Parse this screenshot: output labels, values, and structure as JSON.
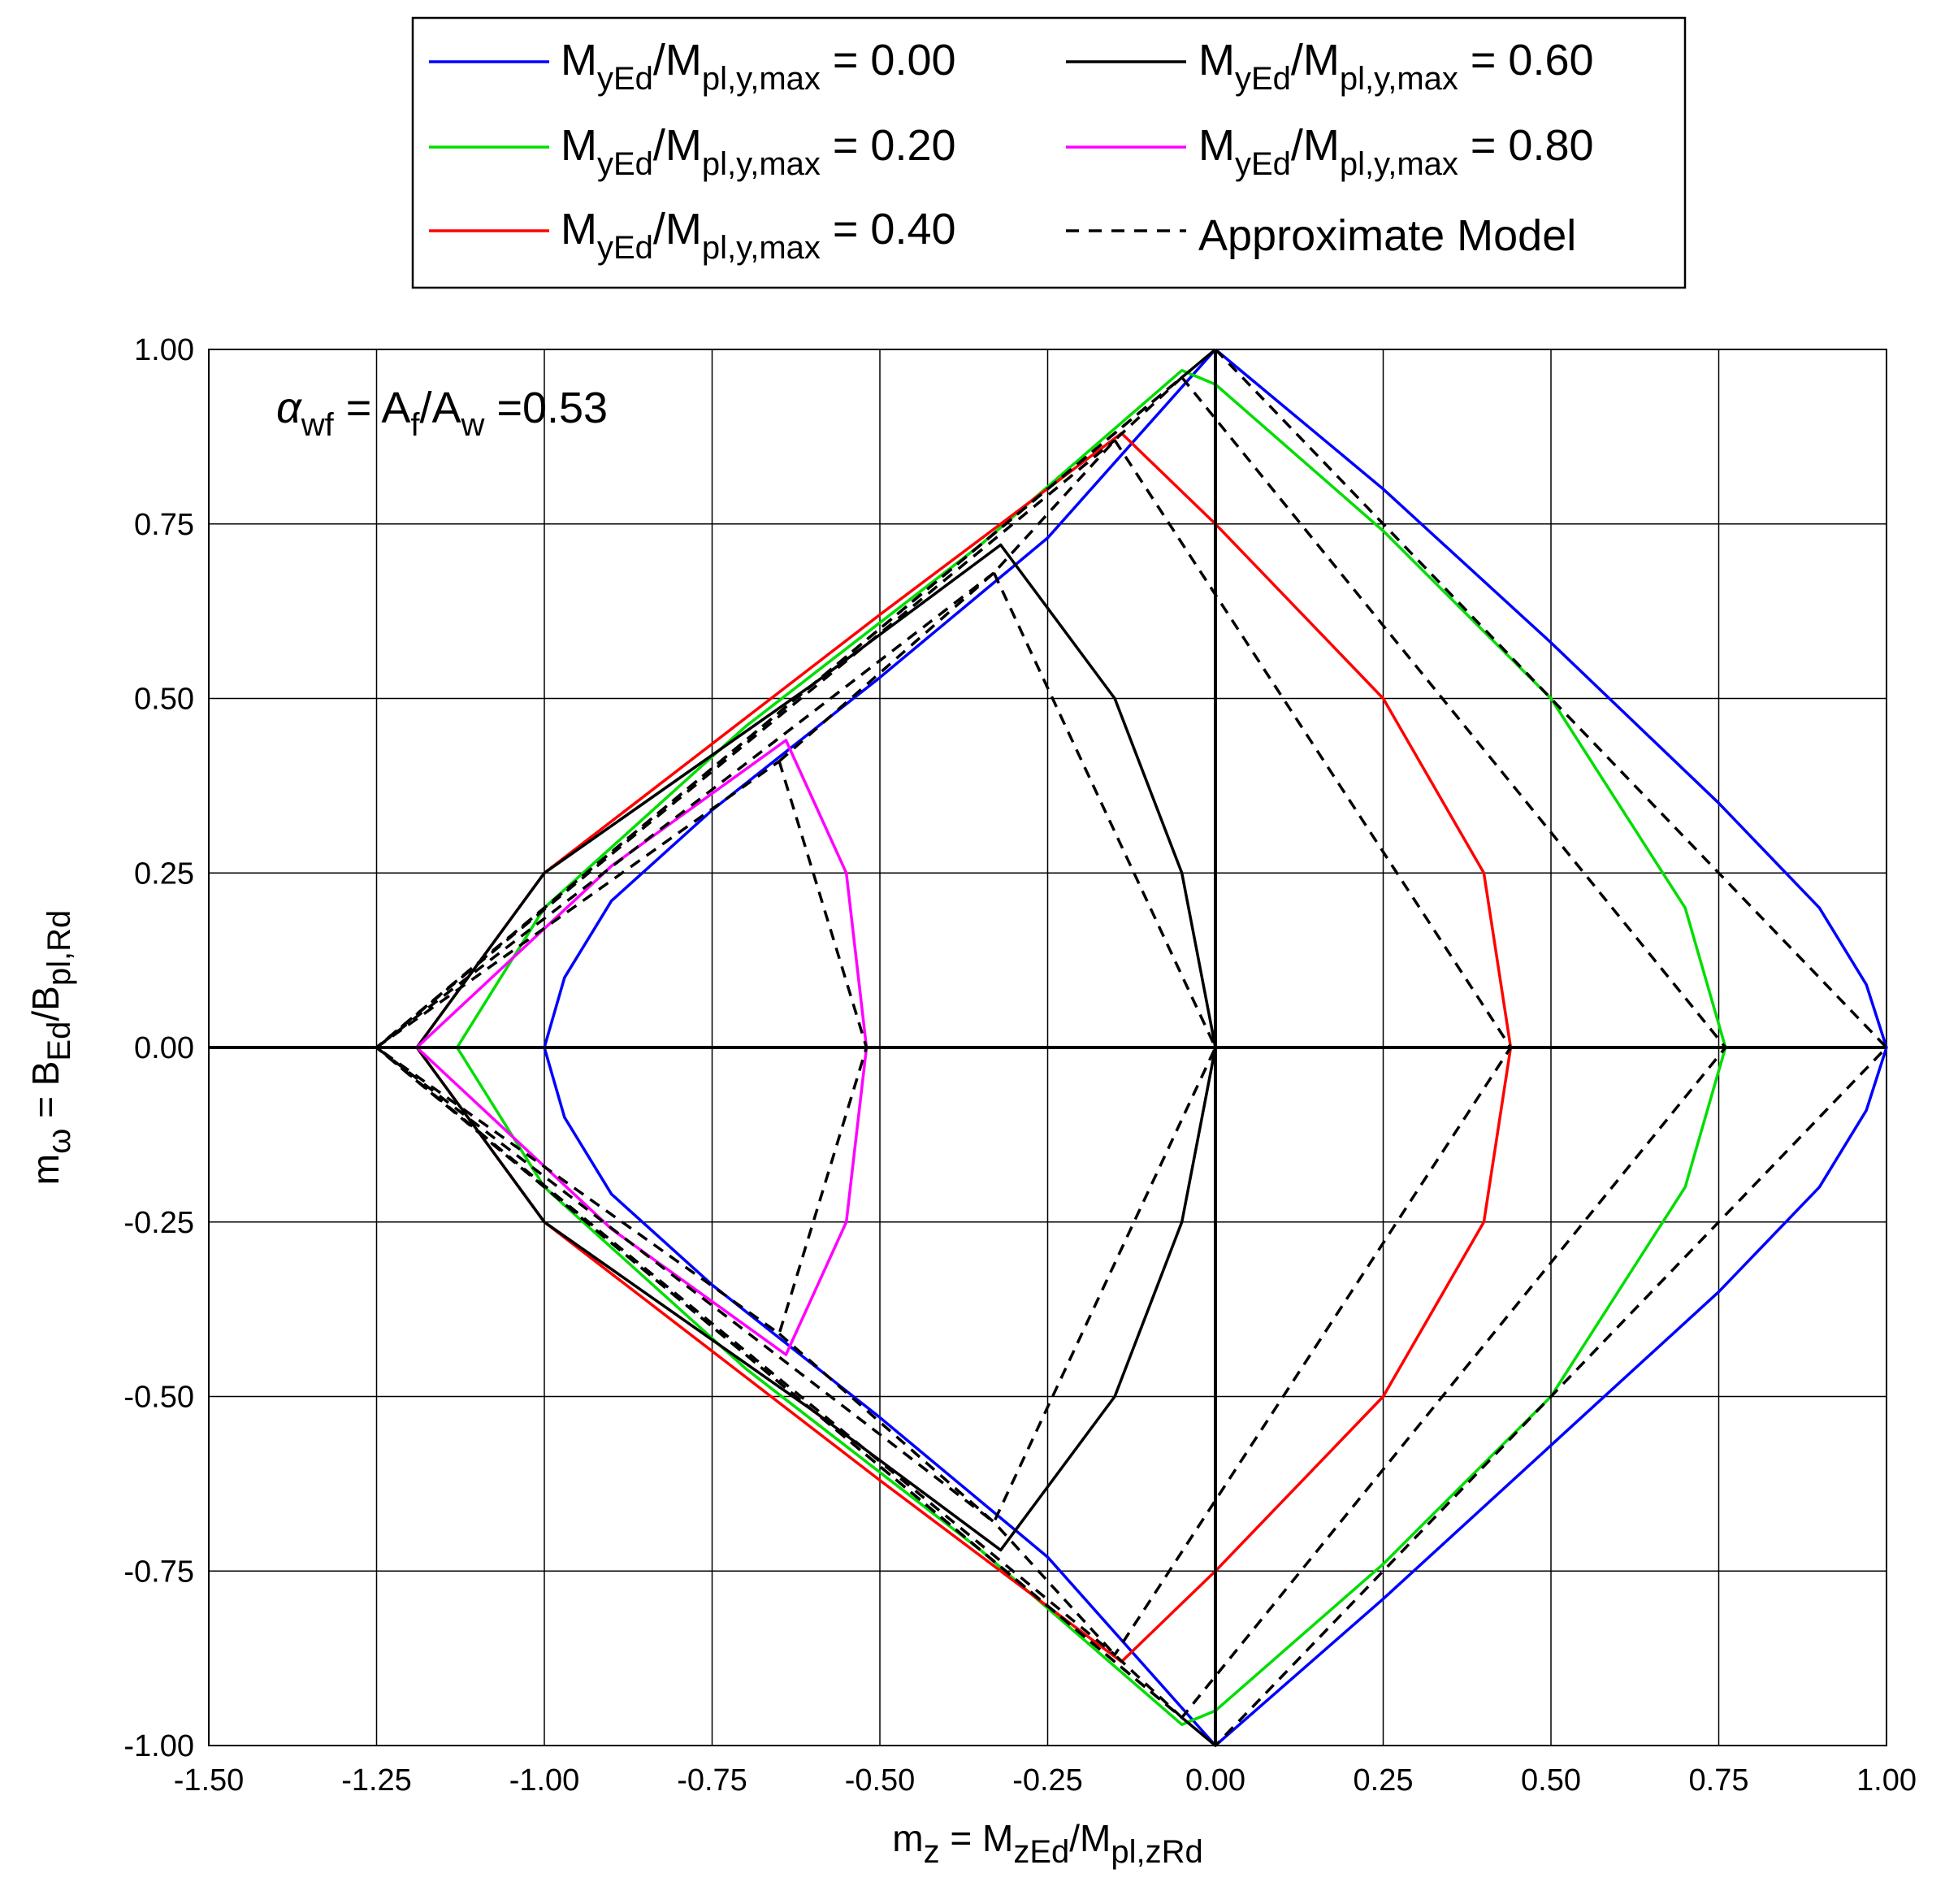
{
  "chart_data": {
    "type": "line",
    "xlabel": "m_z = M_zEd/M_pl,zRd",
    "ylabel": "m_ω = B_Ed/B_pl,Rd",
    "xlim": [
      -1.5,
      1.0
    ],
    "ylim": [
      -1.0,
      1.0
    ],
    "grid": true,
    "legend_position": "top",
    "x_ticks": [
      "-1.50",
      "-1.25",
      "-1.00",
      "-0.75",
      "-0.50",
      "-0.25",
      "0.00",
      "0.25",
      "0.50",
      "0.75",
      "1.00"
    ],
    "y_ticks": [
      "1.00",
      "0.75",
      "0.50",
      "0.25",
      "0.00",
      "-0.25",
      "-0.50",
      "-0.75",
      "-1.00"
    ],
    "annotation": {
      "prefix": "α",
      "prefix_sub": "wf",
      "mid": " = A",
      "mid_sub": "f",
      "end": "/A",
      "end_sub": "w",
      "value": " =0.53"
    },
    "legend": [
      {
        "main": "M",
        "sub1": "yEd",
        "slash": "/M",
        "sub2": "pl,y,max",
        "value": " = 0.00",
        "color": "#0000ff",
        "dash": false
      },
      {
        "main": "M",
        "sub1": "yEd",
        "slash": "/M",
        "sub2": "pl,y,max",
        "value": " = 0.20",
        "color": "#00dd00",
        "dash": false
      },
      {
        "main": "M",
        "sub1": "yEd",
        "slash": "/M",
        "sub2": "pl,y,max",
        "value": " = 0.40",
        "color": "#ff0000",
        "dash": false
      },
      {
        "main": "M",
        "sub1": "yEd",
        "slash": "/M",
        "sub2": "pl,y,max",
        "value": " = 0.60",
        "color": "#000000",
        "dash": false
      },
      {
        "main": "M",
        "sub1": "yEd",
        "slash": "/M",
        "sub2": "pl,y,max",
        "value": " = 0.80",
        "color": "#ff00ff",
        "dash": false
      },
      {
        "label": "Approximate Model",
        "color": "#000000",
        "dash": true
      }
    ],
    "xlabel_parts": {
      "a": "m",
      "a_sub": "z",
      "b": " = M",
      "b_sub": "zEd",
      "c": "/M",
      "c_sub": "pl,zRd"
    },
    "ylabel_parts": {
      "a": "m",
      "a_sub": "ω",
      "b": " = B",
      "b_sub": "Ed",
      "c": "/B",
      "c_sub": "pl,Rd"
    },
    "series": [
      {
        "name": "M_yEd/M_pl,y,max = 0.00",
        "color": "#0000ff",
        "style": "solid",
        "x": [
          0.0,
          0.25,
          0.5,
          0.75,
          0.9,
          0.97,
          1.0,
          0.97,
          0.9,
          0.75,
          0.5,
          0.25,
          0.0,
          -0.25,
          -0.5,
          -0.75,
          -0.9,
          -0.97,
          -1.0,
          -0.97,
          -0.9,
          -0.75,
          -0.5,
          -0.25,
          0.0
        ],
        "y": [
          1.0,
          0.8,
          0.58,
          0.35,
          0.2,
          0.09,
          0.0,
          -0.09,
          -0.2,
          -0.35,
          -0.57,
          -0.79,
          -1.0,
          -0.73,
          -0.53,
          -0.34,
          -0.21,
          -0.1,
          0.0,
          0.1,
          0.21,
          0.34,
          0.53,
          0.73,
          1.0
        ]
      },
      {
        "name": "M_yEd/M_pl,y,max = 0.20",
        "color": "#00dd00",
        "style": "solid",
        "x": [
          0.0,
          0.25,
          0.5,
          0.7,
          0.76,
          0.7,
          0.5,
          0.25,
          0.0,
          -0.05,
          -0.35,
          -0.7,
          -1.0,
          -1.13,
          -1.0,
          -0.7,
          -0.35,
          -0.05,
          0.0
        ],
        "y": [
          0.95,
          0.74,
          0.5,
          0.2,
          0.0,
          -0.2,
          -0.5,
          -0.74,
          -0.95,
          -0.97,
          -0.72,
          -0.46,
          -0.2,
          0.0,
          0.2,
          0.46,
          0.72,
          0.97,
          0.95
        ]
      },
      {
        "name": "M_yEd/M_pl,y,max = 0.40",
        "color": "#ff0000",
        "style": "solid",
        "x": [
          0.0,
          0.25,
          0.4,
          0.44,
          0.4,
          0.25,
          0.0,
          -0.14,
          -0.5,
          -1.0,
          -1.19,
          -1.0,
          -0.5,
          -0.14,
          0.0
        ],
        "y": [
          0.75,
          0.5,
          0.25,
          0.0,
          -0.25,
          -0.5,
          -0.75,
          -0.88,
          -0.62,
          -0.25,
          0.0,
          0.25,
          0.62,
          0.88,
          0.75
        ]
      },
      {
        "name": "M_yEd/M_pl,y,max = 0.60",
        "color": "#000000",
        "style": "solid",
        "x": [
          0.0,
          -0.05,
          -0.15,
          -0.32,
          -0.6,
          -1.0,
          -1.19,
          -1.0,
          -0.6,
          -0.32,
          -0.15,
          -0.05,
          0.0
        ],
        "y": [
          0.0,
          0.25,
          0.5,
          0.72,
          0.52,
          0.25,
          0.0,
          -0.25,
          -0.52,
          -0.72,
          -0.5,
          -0.25,
          0.0
        ]
      },
      {
        "name": "M_yEd/M_pl,y,max = 0.80",
        "color": "#ff00ff",
        "style": "solid",
        "x": [
          -0.52,
          -0.55,
          -0.64,
          -0.9,
          -1.19,
          -0.9,
          -0.64,
          -0.55,
          -0.52
        ],
        "y": [
          0.0,
          0.25,
          0.44,
          0.26,
          0.0,
          -0.26,
          -0.44,
          -0.25,
          0.0
        ]
      },
      {
        "name": "Approximate Model (0.00)",
        "color": "#000000",
        "style": "dashed",
        "x": [
          0.0,
          1.0,
          0.0,
          -1.25,
          0.0
        ],
        "y": [
          1.0,
          0.0,
          -1.0,
          0.0,
          1.0
        ]
      },
      {
        "name": "Approximate Model (0.20)",
        "color": "#000000",
        "style": "dashed",
        "x": [
          -0.05,
          0.76,
          -0.05,
          -1.25,
          -0.05
        ],
        "y": [
          0.96,
          0.0,
          -0.96,
          0.0,
          0.96
        ]
      },
      {
        "name": "Approximate Model (0.40)",
        "color": "#000000",
        "style": "dashed",
        "x": [
          -0.15,
          0.44,
          -0.15,
          -1.25,
          -0.15
        ],
        "y": [
          0.87,
          0.0,
          -0.87,
          0.0,
          0.87
        ]
      },
      {
        "name": "Approximate Model (0.60)",
        "color": "#000000",
        "style": "dashed",
        "x": [
          -0.33,
          0.0,
          -0.33,
          -1.25,
          -0.33
        ],
        "y": [
          0.68,
          0.0,
          -0.68,
          0.0,
          0.68
        ]
      },
      {
        "name": "Approximate Model (0.80)",
        "color": "#000000",
        "style": "dashed",
        "x": [
          -0.65,
          -0.52,
          -0.65,
          -1.25,
          -0.65
        ],
        "y": [
          0.41,
          0.0,
          -0.41,
          0.0,
          0.41
        ]
      },
      {
        "name": "Approximate Model (lower)",
        "color": "#000000",
        "style": "dashed",
        "x": [
          -0.65,
          -0.33,
          -0.15,
          -0.05,
          0.0
        ],
        "y": [
          -0.41,
          -0.68,
          -0.87,
          -0.96,
          -1.0
        ]
      },
      {
        "name": "Approximate Model (upper)",
        "color": "#000000",
        "style": "dashed",
        "x": [
          -0.65,
          -0.33,
          -0.15,
          -0.05,
          0.0
        ],
        "y": [
          0.41,
          0.68,
          0.87,
          0.96,
          1.0
        ]
      }
    ]
  }
}
